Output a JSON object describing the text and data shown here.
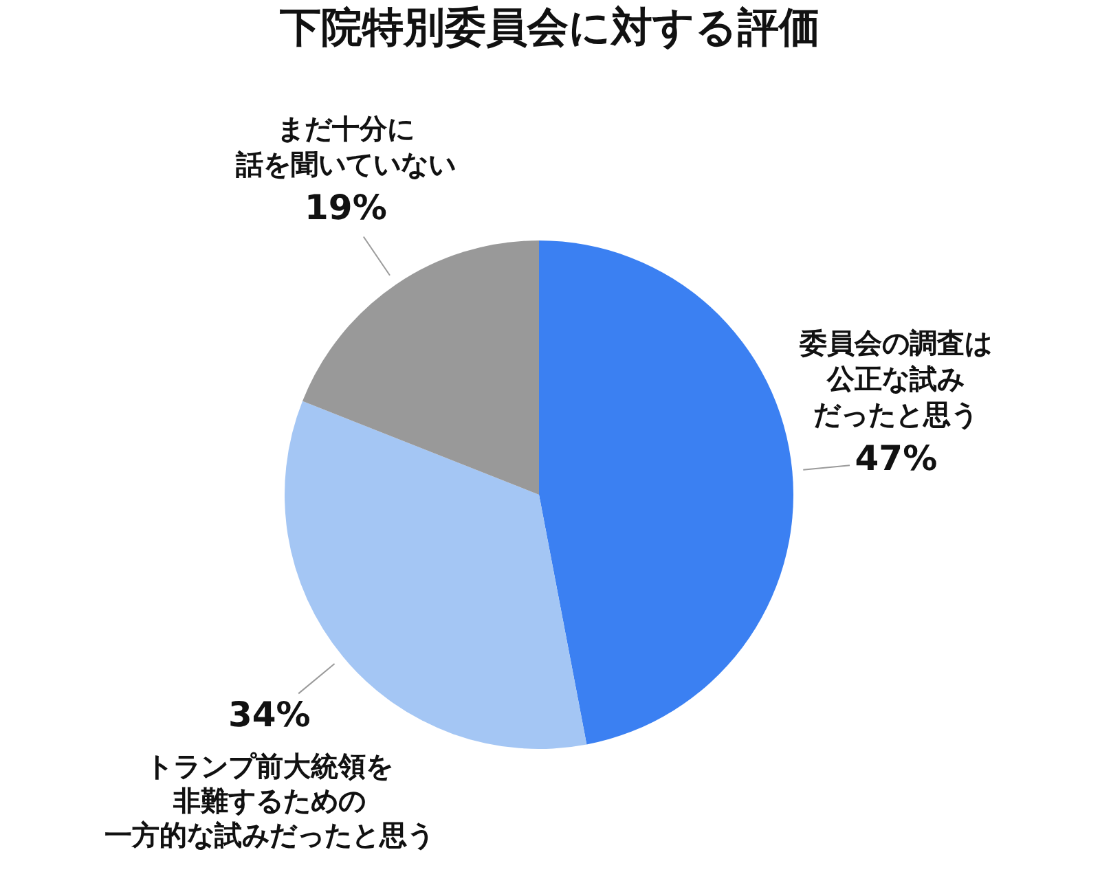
{
  "chart_data": {
    "type": "pie",
    "title": "下院特別委員会に対する評価",
    "categories": [
      "委員会の調査は公正な試みだったと思う",
      "トランプ前大統領を非難するための一方的な試みだったと思う",
      "まだ十分に話を聞いていない"
    ],
    "values": [
      47,
      34,
      19
    ],
    "colors": [
      "#3b80f2",
      "#a4c6f4",
      "#999999"
    ],
    "value_labels": [
      "47%",
      "34%",
      "19%"
    ]
  }
}
